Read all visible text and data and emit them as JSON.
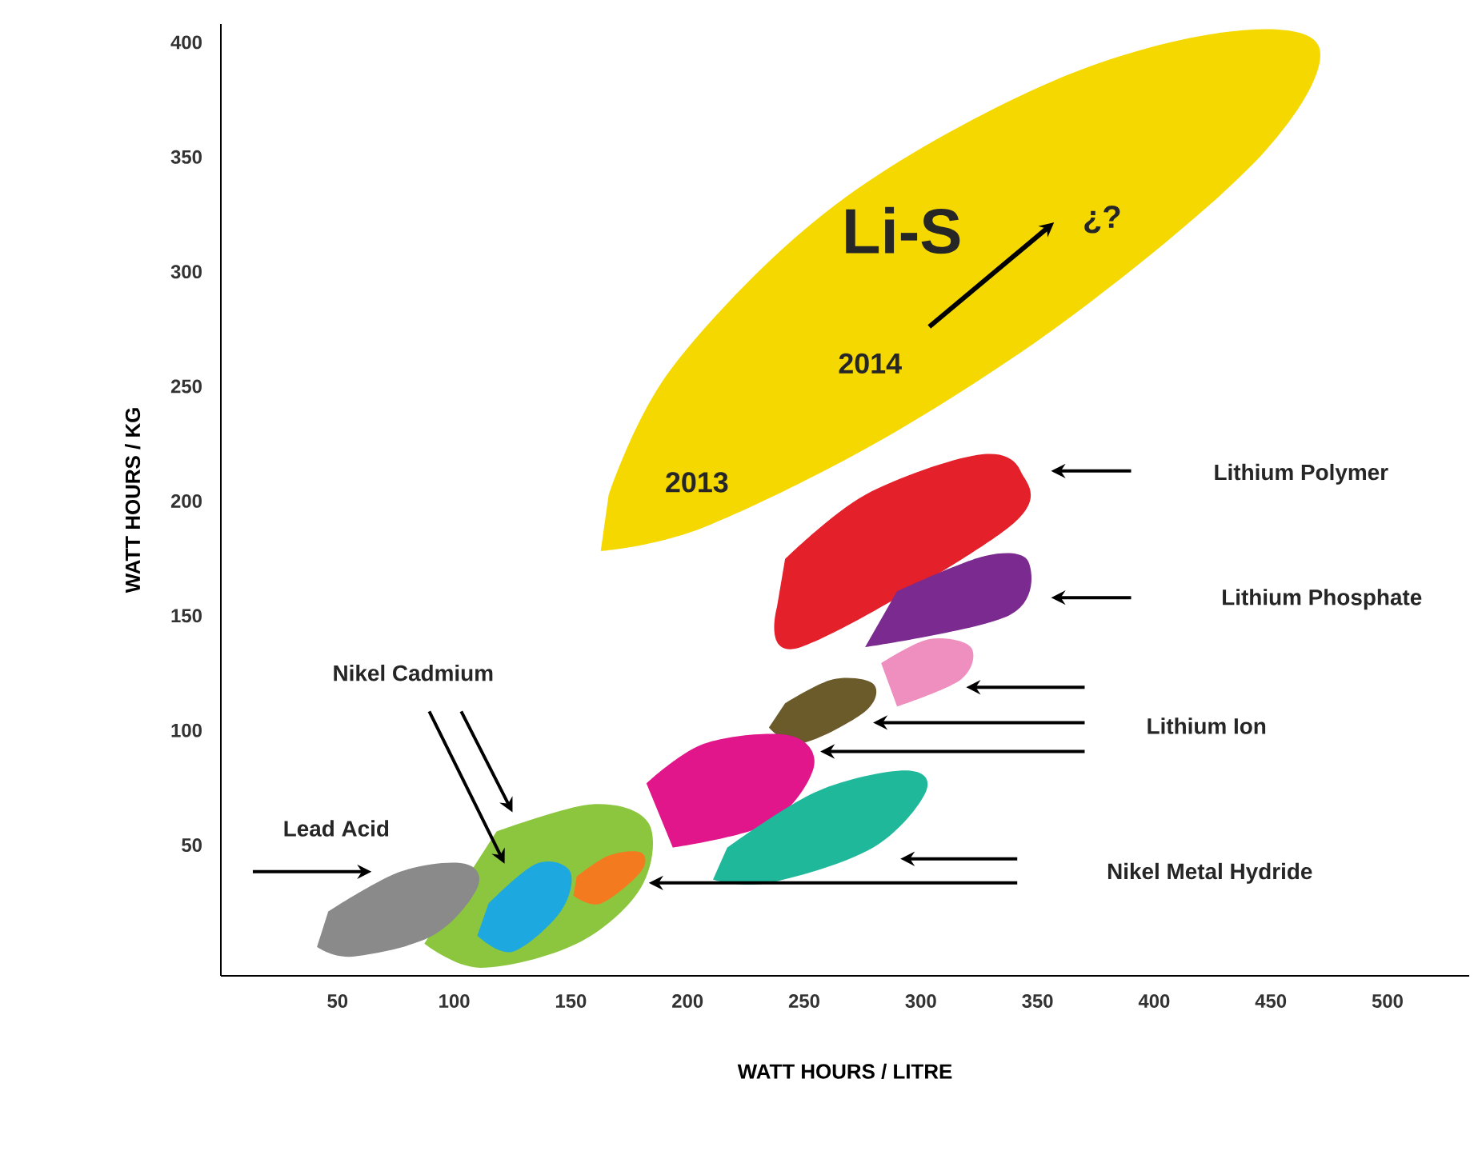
{
  "chart_data": {
    "type": "area",
    "xlabel": "WATT HOURS / LITRE",
    "ylabel": "WATT HOURS / KG",
    "xlim": [
      0,
      535
    ],
    "ylim": [
      -7,
      408
    ],
    "xticks": [
      50,
      100,
      150,
      200,
      250,
      300,
      350,
      400,
      450,
      500
    ],
    "yticks": [
      50,
      100,
      150,
      200,
      250,
      300,
      350,
      400
    ],
    "series": [
      {
        "color": "#f5d800",
        "x": [
          162.8,
          207.4,
          289.8,
          372.3,
          447.8,
          470.5,
          427.2,
          351.6,
          262.4,
          193.7,
          166.2
        ],
        "values": [
          178.2,
          188.7,
          230.6,
          286.5,
          352.9,
          398.3,
          404,
          380.9,
          328.4,
          258.6,
          202.7
        ]
      },
      {
        "color": "#e4202a",
        "x": [
          238.3,
          248.6,
          337.9,
          342.7,
          324.2,
          276.1,
          241.8
        ],
        "values": [
          153.7,
          136.3,
          188.7,
          213.1,
          220.1,
          202.7,
          174.7
        ]
      },
      {
        "color": "#7b2a90",
        "x": [
          276.1,
          337.9,
          346.2,
          327.6,
          289.8
        ],
        "values": [
          136.3,
          150.2,
          173.3,
          176.1,
          160.7
        ]
      },
      {
        "color": "#ee8fc0",
        "x": [
          289.8,
          317.3,
          321.4,
          303.6,
          283
        ],
        "values": [
          110.4,
          122.3,
          136.3,
          139.8,
          129.3
        ]
      },
      {
        "color": "#6b5a2a",
        "x": [
          234.9,
          248.6,
          276.1,
          279.7,
          262.4,
          241.8
        ],
        "values": [
          101.3,
          94.3,
          108.3,
          120.2,
          122.3,
          111.8
        ]
      },
      {
        "color": "#e0168a",
        "x": [
          193.7,
          234.9,
          254.1,
          243.7,
          207.4,
          182.4
        ],
        "values": [
          48.9,
          59.4,
          83.9,
          97.8,
          94.3,
          76.9
        ]
      },
      {
        "color": "#20b89a",
        "x": [
          210.9,
          234.9,
          279.5,
          302.2,
          293.3,
          255.5,
          217
        ],
        "values": [
          34.9,
          33.5,
          48.9,
          73.4,
          82.5,
          73.4,
          48.9
        ]
      },
      {
        "color": "#8cc63f",
        "x": [
          87.2,
          111.3,
          152.5,
          180,
          183.4,
          159.3,
          118.1
        ],
        "values": [
          7,
          -3.5,
          7,
          31.4,
          59.4,
          67.8,
          55.9
        ]
      },
      {
        "color": "#1ea8e0",
        "x": [
          109.9,
          125,
          145.6,
          149.7,
          135.3,
          114.7
        ],
        "values": [
          10.5,
          3.5,
          21,
          38.4,
          41.9,
          24.5
        ]
      },
      {
        "color": "#f47a20",
        "x": [
          151.1,
          162.8,
          180,
          180,
          166.2,
          152.5
        ],
        "values": [
          28,
          24.5,
          38.4,
          46.8,
          45.4,
          36.3
        ]
      },
      {
        "color": "#8a8a8a",
        "x": [
          41.2,
          56.3,
          90.7,
          109.9,
          104.4,
          76.9,
          46
        ],
        "values": [
          5.6,
          1.4,
          10.5,
          31.4,
          41.9,
          38.4,
          21
        ]
      }
    ],
    "annotations": [
      "Lead Acid",
      "Nikel Cadmium",
      "Lithium Polymer",
      "Lithium Phosphate",
      "Lithium Ion",
      "Nikel Metal Hydride",
      "Li-S",
      "2013",
      "2014",
      "¿?"
    ]
  }
}
